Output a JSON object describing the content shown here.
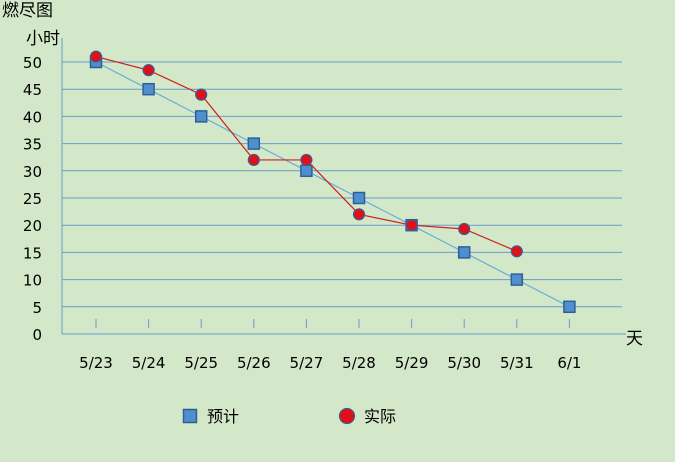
{
  "chart_data": {
    "type": "line",
    "title": "燃尽图",
    "ylabel": "小时",
    "xlabel": "天",
    "categories": [
      "5/23",
      "5/24",
      "5/25",
      "5/26",
      "5/27",
      "5/28",
      "5/29",
      "5/30",
      "5/31",
      "6/1"
    ],
    "yticks": [
      0,
      5,
      10,
      15,
      20,
      25,
      30,
      35,
      40,
      45,
      50
    ],
    "ylim": [
      0,
      50
    ],
    "grid": true,
    "legend_position": "bottom",
    "series": [
      {
        "name": "预计",
        "marker": "square",
        "line_color": "#6aaed6",
        "marker_fill": "#4f8fd0",
        "marker_stroke": "#2f5f98",
        "values": [
          50,
          45,
          40,
          35,
          30,
          25,
          20,
          15,
          10,
          5
        ]
      },
      {
        "name": "实际",
        "marker": "circle",
        "line_color": "#cc1f1f",
        "marker_fill": "#e0101a",
        "marker_stroke": "#3a5f8f",
        "values": [
          51,
          48.5,
          44,
          32,
          32,
          22,
          20,
          19.3,
          15.2,
          null
        ]
      }
    ]
  }
}
